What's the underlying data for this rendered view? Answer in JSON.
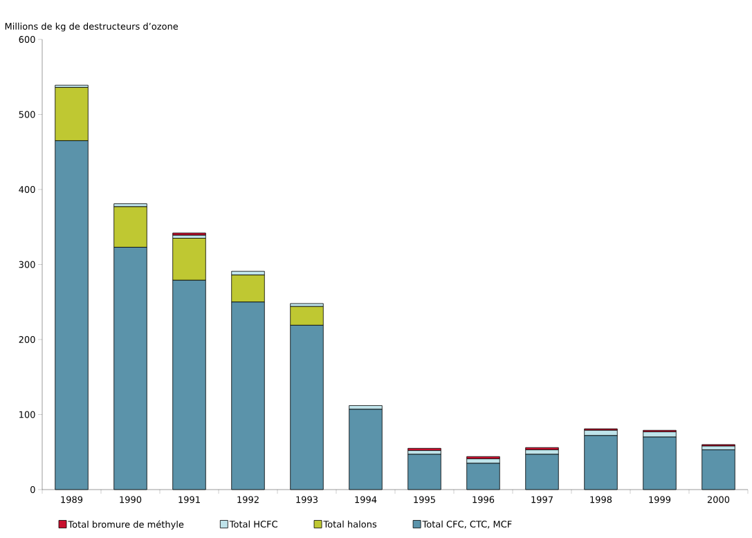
{
  "chart_data": {
    "type": "bar",
    "stacked": true,
    "ylabel": "Millions de kg de destructeurs d’ozone",
    "categories": [
      "1989",
      "1990",
      "1991",
      "1992",
      "1993",
      "1994",
      "1995",
      "1996",
      "1997",
      "1998",
      "1999",
      "2000"
    ],
    "series": [
      {
        "name": "Total CFC, CTC, MCF",
        "color": "#5b93aa",
        "values": [
          465,
          323,
          279,
          250,
          219,
          107,
          47,
          35,
          47,
          72,
          70,
          53
        ]
      },
      {
        "name": "Total halons",
        "color": "#bfc832",
        "values": [
          71,
          54,
          56,
          36,
          25,
          0,
          0,
          0,
          0,
          0,
          0,
          0
        ]
      },
      {
        "name": "Total HCFC",
        "color": "#bfe3ea",
        "values": [
          3,
          4,
          4,
          5,
          4,
          5,
          5,
          6,
          6,
          7,
          7,
          5
        ]
      },
      {
        "name": "Total bromure de méthyle",
        "color": "#c8102e",
        "values": [
          0,
          0,
          3,
          0,
          0,
          0,
          3,
          3,
          3,
          2,
          2,
          2
        ]
      }
    ],
    "ylim": [
      0,
      600
    ],
    "yticks": [
      0,
      100,
      200,
      300,
      400,
      500,
      600
    ],
    "legend": "bottom",
    "grid": false
  }
}
